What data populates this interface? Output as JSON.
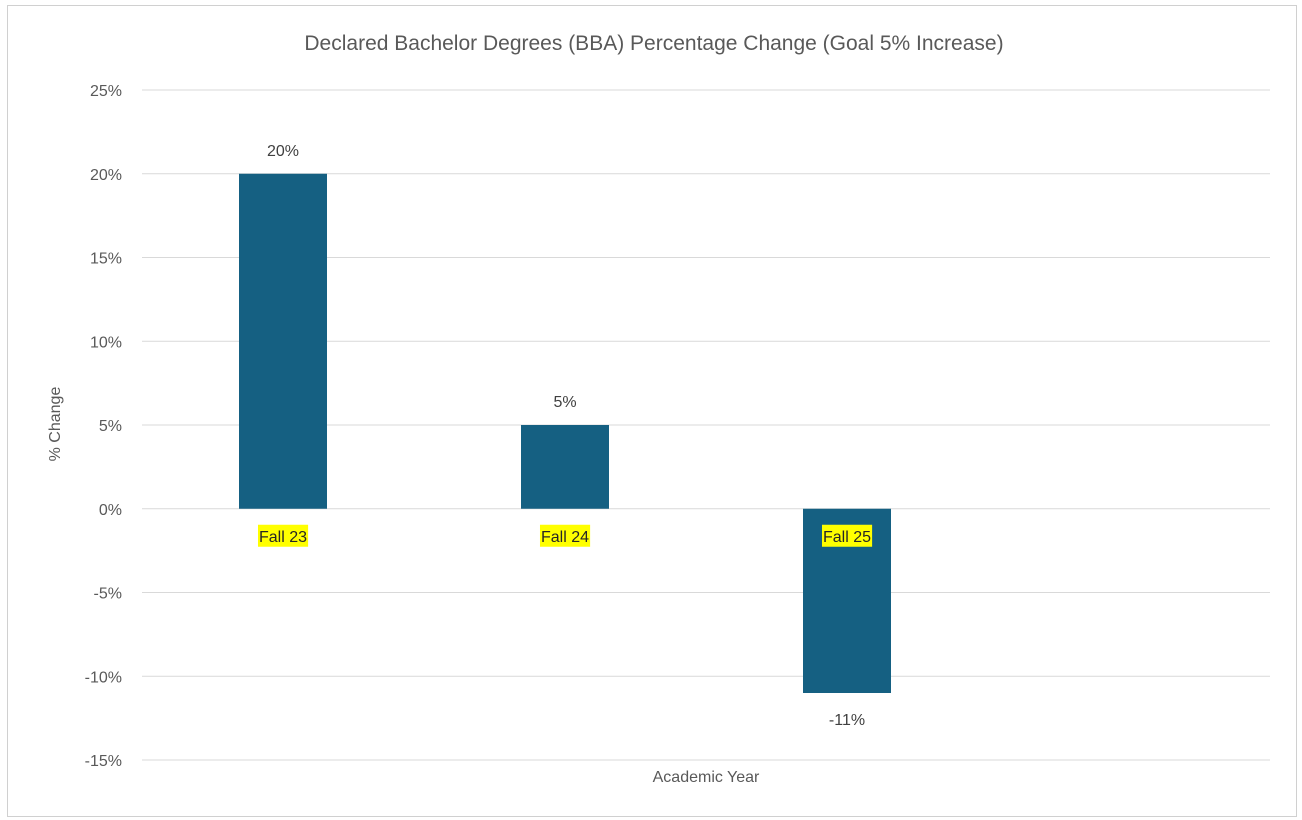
{
  "chart_data": {
    "type": "bar",
    "title": "Declared Bachelor Degrees (BBA) Percentage Change (Goal 5% Increase)",
    "xlabel": "Academic Year",
    "ylabel": "% Change",
    "categories": [
      "Fall 23",
      "Fall 24",
      "Fall 25"
    ],
    "values": [
      20,
      5,
      -11
    ],
    "data_labels": [
      "20%",
      "5%",
      "-11%"
    ],
    "ylim": [
      -15,
      25
    ],
    "yticks": [
      25,
      20,
      15,
      10,
      5,
      0,
      -5,
      -10,
      -15
    ],
    "ytick_labels": [
      "25%",
      "20%",
      "15%",
      "10%",
      "5%",
      "0%",
      "-5%",
      "-10%",
      "-15%"
    ],
    "grid": true,
    "legend": "none",
    "category_label_highlight": "#ffff00",
    "colors": {
      "bar": "#156082",
      "grid": "#d9d9d9",
      "text": "#595959"
    }
  }
}
